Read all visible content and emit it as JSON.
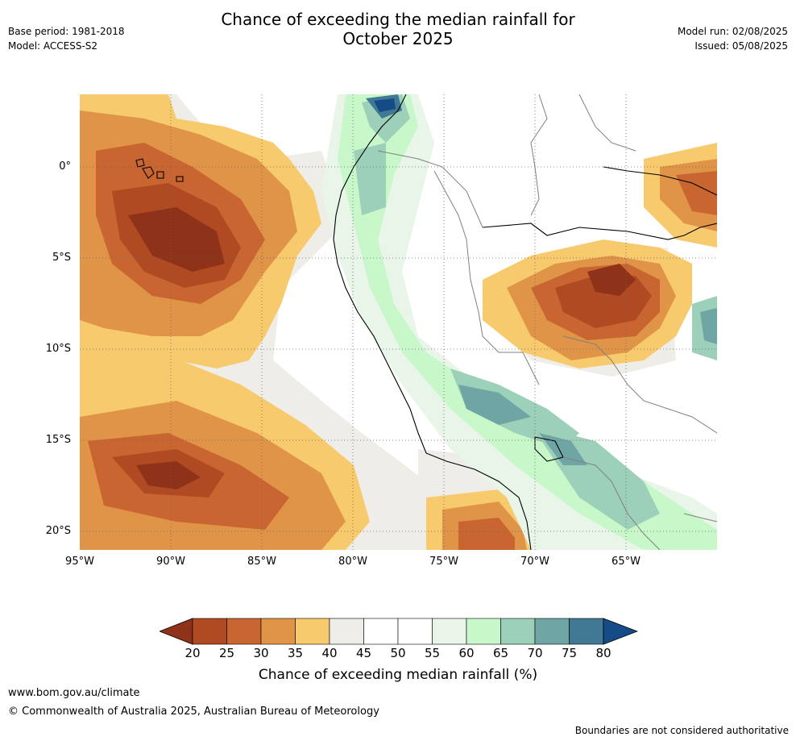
{
  "title": {
    "line1": "Chance of exceeding the median rainfall for",
    "line2": "October 2025"
  },
  "meta": {
    "base_period": "Base period: 1981-2018",
    "model": "Model: ACCESS-S2",
    "model_run": "Model run: 02/08/2025",
    "issued": "Issued: 05/08/2025"
  },
  "map": {
    "lat_labels": [
      "0°",
      "5°S",
      "10°S",
      "15°S",
      "20°S"
    ],
    "lon_labels": [
      "95°W",
      "90°W",
      "85°W",
      "80°W",
      "75°W",
      "70°W",
      "65°W"
    ],
    "palette": {
      "lt20": "#8e3319",
      "c20_25": "#b04a23",
      "c25_30": "#c96530",
      "c30_35": "#e09448",
      "c35_40": "#f8ca6e",
      "c40_45": "#efede8",
      "c45_55": "#ffffff",
      "c55_60": "#e8f5e8",
      "c60_65": "#c8f7ca",
      "c65_70": "#9dd0b8",
      "c70_75": "#6fa5a5",
      "c75_80": "#417894",
      "gt80": "#154c87",
      "coast": "#000000",
      "border": "#808080",
      "grid": "#666666"
    }
  },
  "colorbar": {
    "ticks": [
      "20",
      "25",
      "30",
      "35",
      "40",
      "45",
      "50",
      "55",
      "60",
      "65",
      "70",
      "75",
      "80"
    ],
    "label": "Chance of exceeding median rainfall (%)"
  },
  "footer": {
    "website": "www.bom.gov.au/climate",
    "copyright": "© Commonwealth of Australia 2025, Australian Bureau of Meteorology",
    "disclaimer": "Boundaries are not considered authoritative"
  }
}
